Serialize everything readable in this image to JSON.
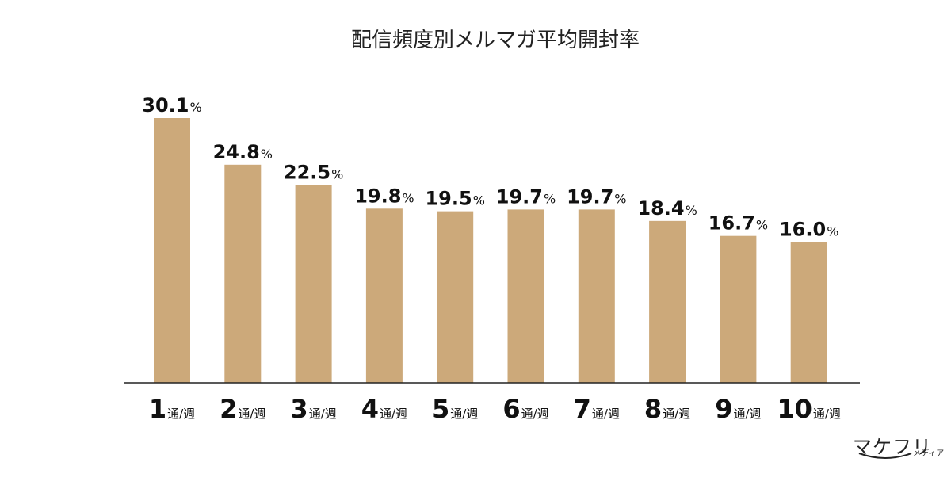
{
  "chart_data": {
    "type": "bar",
    "title": "配信頻度別メルマガ平均開封率",
    "categories": [
      {
        "num": "1",
        "unit": "通/週"
      },
      {
        "num": "2",
        "unit": "通/週"
      },
      {
        "num": "3",
        "unit": "通/週"
      },
      {
        "num": "4",
        "unit": "通/週"
      },
      {
        "num": "5",
        "unit": "通/週"
      },
      {
        "num": "6",
        "unit": "通/週"
      },
      {
        "num": "7",
        "unit": "通/週"
      },
      {
        "num": "8",
        "unit": "通/週"
      },
      {
        "num": "9",
        "unit": "通/週"
      },
      {
        "num": "10",
        "unit": "通/週"
      }
    ],
    "values": [
      30.1,
      24.8,
      22.5,
      19.8,
      19.5,
      19.7,
      19.7,
      18.4,
      16.7,
      16.0
    ],
    "value_labels": [
      "30.1",
      "24.8",
      "22.5",
      "19.8",
      "19.5",
      "19.7",
      "19.7",
      "18.4",
      "16.7",
      "16.0"
    ],
    "value_suffix": "%",
    "ylim": [
      0,
      30.1
    ],
    "grid": false,
    "bar_color": "#cca97a"
  },
  "brand": {
    "name": "マケフリ",
    "sub": "メディア"
  }
}
